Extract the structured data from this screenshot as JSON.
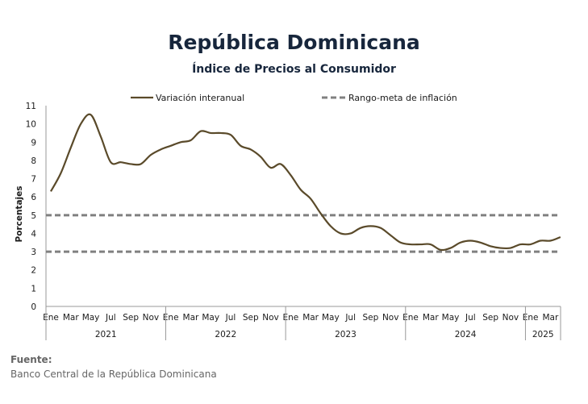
{
  "title": "República Dominicana",
  "subtitle": "Índice de Precios al Consumidor",
  "source_label": "Fuente:",
  "source_text": "Banco Central de la República Dominicana",
  "colors": {
    "line": "#5a4a2a",
    "target": "#808080",
    "title": "#17263c",
    "axis": "#666666"
  },
  "chart_data": {
    "type": "line",
    "title": "República Dominicana",
    "subtitle": "Índice de Precios al Consumidor",
    "ylabel": "Porcentajes",
    "ylim": [
      0,
      11
    ],
    "yticks": [
      0,
      1,
      2,
      3,
      4,
      5,
      6,
      7,
      8,
      9,
      10,
      11
    ],
    "grid": false,
    "legend_position": "top",
    "month_tick_labels": [
      "Ene",
      "Mar",
      "May",
      "Jul",
      "Sep",
      "Nov"
    ],
    "x": [
      "2021-01",
      "2021-02",
      "2021-03",
      "2021-04",
      "2021-05",
      "2021-06",
      "2021-07",
      "2021-08",
      "2021-09",
      "2021-10",
      "2021-11",
      "2021-12",
      "2022-01",
      "2022-02",
      "2022-03",
      "2022-04",
      "2022-05",
      "2022-06",
      "2022-07",
      "2022-08",
      "2022-09",
      "2022-10",
      "2022-11",
      "2022-12",
      "2023-01",
      "2023-02",
      "2023-03",
      "2023-04",
      "2023-05",
      "2023-06",
      "2023-07",
      "2023-08",
      "2023-09",
      "2023-10",
      "2023-11",
      "2023-12",
      "2024-01",
      "2024-02",
      "2024-03",
      "2024-04",
      "2024-05",
      "2024-06",
      "2024-07",
      "2024-08",
      "2024-09",
      "2024-10",
      "2024-11",
      "2024-12",
      "2025-01",
      "2025-02",
      "2025-03",
      "2025-04"
    ],
    "years": [
      {
        "label": "2021",
        "months": 12
      },
      {
        "label": "2022",
        "months": 12
      },
      {
        "label": "2023",
        "months": 12
      },
      {
        "label": "2024",
        "months": 12
      },
      {
        "label": "2025",
        "months": 4
      }
    ],
    "series": [
      {
        "name": "Variación interanual",
        "style": "solid",
        "values": [
          6.3,
          7.3,
          8.7,
          10.0,
          10.5,
          9.3,
          7.9,
          7.9,
          7.8,
          7.8,
          8.3,
          8.6,
          8.8,
          9.0,
          9.1,
          9.6,
          9.5,
          9.5,
          9.4,
          8.8,
          8.6,
          8.2,
          7.6,
          7.8,
          7.2,
          6.4,
          5.9,
          5.1,
          4.4,
          4.0,
          4.0,
          4.3,
          4.4,
          4.3,
          3.9,
          3.5,
          3.4,
          3.4,
          3.4,
          3.1,
          3.2,
          3.5,
          3.6,
          3.5,
          3.3,
          3.2,
          3.2,
          3.4,
          3.4,
          3.6,
          3.6,
          3.8
        ]
      },
      {
        "name": "Rango-meta de inflación",
        "style": "dashed",
        "bands": [
          3,
          5
        ]
      }
    ]
  }
}
